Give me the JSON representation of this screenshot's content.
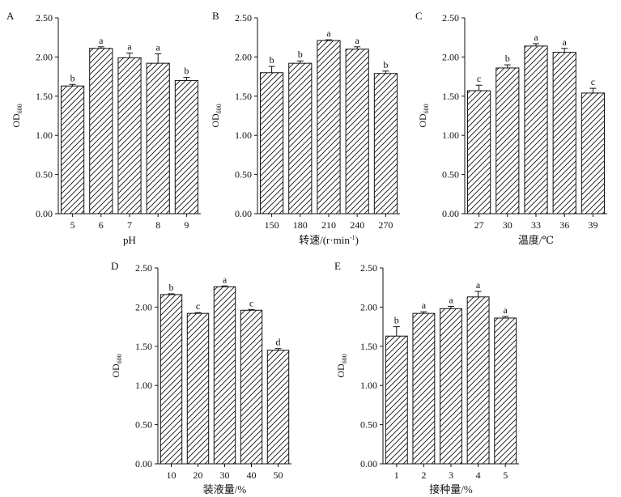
{
  "chart_data": [
    {
      "type": "bar",
      "panel_label": "A",
      "categories": [
        "5",
        "6",
        "7",
        "8",
        "9"
      ],
      "values": [
        1.63,
        2.11,
        1.99,
        1.92,
        1.7
      ],
      "errors": [
        0.02,
        0.02,
        0.06,
        0.12,
        0.04
      ],
      "significance": [
        "b",
        "a",
        "a",
        "a",
        "b"
      ],
      "xlabel": "pH",
      "ylabel": "OD",
      "ylabel_sub": "600",
      "ylim": [
        0,
        2.5
      ],
      "yticks": [
        "0.00",
        "0.50",
        "1.00",
        "1.50",
        "2.00",
        "2.50"
      ],
      "fill": "diagonal-hatch"
    },
    {
      "type": "bar",
      "panel_label": "B",
      "categories": [
        "150",
        "180",
        "210",
        "240",
        "270"
      ],
      "values": [
        1.8,
        1.92,
        2.21,
        2.1,
        1.79
      ],
      "errors": [
        0.08,
        0.03,
        0.01,
        0.03,
        0.03
      ],
      "significance": [
        "b",
        "b",
        "a",
        "a",
        "b"
      ],
      "xlabel": "转速/(r·min",
      "xlabel_sup": "-1",
      "xlabel_end": ")",
      "ylabel": "OD",
      "ylabel_sub": "600",
      "ylim": [
        0,
        2.5
      ],
      "yticks": [
        "0.00",
        "0.50",
        "1.00",
        "1.50",
        "2.00",
        "2.50"
      ],
      "fill": "diagonal-hatch"
    },
    {
      "type": "bar",
      "panel_label": "C",
      "categories": [
        "27",
        "30",
        "33",
        "36",
        "39"
      ],
      "values": [
        1.57,
        1.86,
        2.14,
        2.06,
        1.54
      ],
      "errors": [
        0.07,
        0.04,
        0.03,
        0.05,
        0.06
      ],
      "significance": [
        "c",
        "b",
        "a",
        "a",
        "c"
      ],
      "xlabel": "温度/℃",
      "ylabel": "OD",
      "ylabel_sub": "600",
      "ylim": [
        0,
        2.5
      ],
      "yticks": [
        "0.00",
        "0.50",
        "1.00",
        "1.50",
        "2.00",
        "2.50"
      ],
      "fill": "diagonal-hatch"
    },
    {
      "type": "bar",
      "panel_label": "D",
      "categories": [
        "10",
        "20",
        "30",
        "40",
        "50"
      ],
      "values": [
        2.16,
        1.92,
        2.26,
        1.96,
        1.45
      ],
      "errors": [
        0.01,
        0.01,
        0.01,
        0.01,
        0.02
      ],
      "significance": [
        "b",
        "c",
        "a",
        "c",
        "d"
      ],
      "xlabel": "装液量/%",
      "ylabel": "OD",
      "ylabel_sub": "600",
      "ylim": [
        0,
        2.5
      ],
      "yticks": [
        "0.00",
        "0.50",
        "1.00",
        "1.50",
        "2.00",
        "2.50"
      ],
      "fill": "diagonal-hatch"
    },
    {
      "type": "bar",
      "panel_label": "E",
      "categories": [
        "1",
        "2",
        "3",
        "4",
        "5"
      ],
      "values": [
        1.63,
        1.92,
        1.98,
        2.13,
        1.86
      ],
      "errors": [
        0.12,
        0.02,
        0.03,
        0.07,
        0.02
      ],
      "significance": [
        "b",
        "a",
        "a",
        "a",
        "a"
      ],
      "xlabel": "接种量/%",
      "ylabel": "OD",
      "ylabel_sub": "600",
      "ylim": [
        0,
        2.5
      ],
      "yticks": [
        "0.00",
        "0.50",
        "1.00",
        "1.50",
        "2.00",
        "2.50"
      ],
      "fill": "diagonal-hatch"
    }
  ]
}
